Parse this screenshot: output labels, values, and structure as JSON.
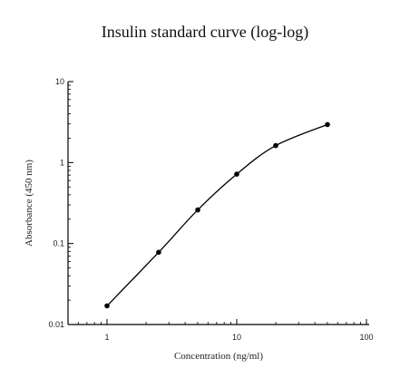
{
  "chart_data": {
    "type": "line",
    "title": "Insulin standard curve (log-log)",
    "xlabel": "Concentration (ng/ml)",
    "ylabel": "Absorbance (450 nm)",
    "x_scale": "log",
    "y_scale": "log",
    "xlim": [
      0.5,
      100
    ],
    "ylim": [
      0.01,
      10
    ],
    "x_ticks": [
      {
        "value": 1,
        "label": "1"
      },
      {
        "value": 10,
        "label": "10"
      },
      {
        "value": 100,
        "label": "100"
      }
    ],
    "y_ticks": [
      {
        "value": 0.01,
        "label": "0.01"
      },
      {
        "value": 0.1,
        "label": "0.1"
      },
      {
        "value": 1,
        "label": "1"
      },
      {
        "value": 10,
        "label": "10"
      }
    ],
    "grid": false,
    "legend": "none",
    "series": [
      {
        "x": [
          1,
          2.5,
          5,
          10,
          20,
          50
        ],
        "y": [
          0.017,
          0.078,
          0.26,
          0.72,
          1.62,
          2.95
        ]
      }
    ],
    "colors": {
      "line": "#000000",
      "axis": "#000000"
    }
  }
}
